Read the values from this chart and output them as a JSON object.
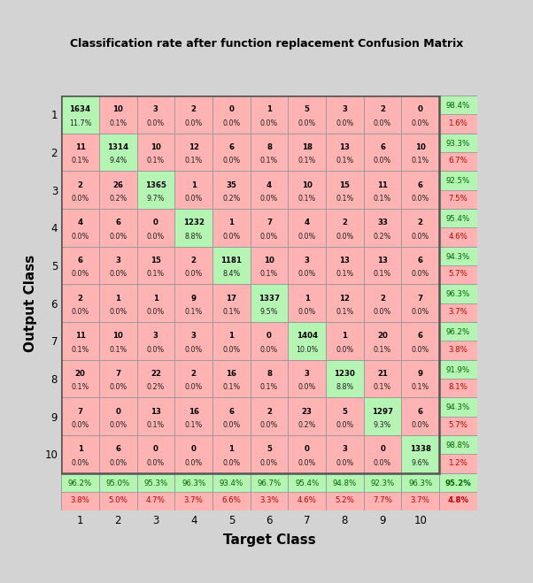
{
  "title": "Classification rate after function replacement Confusion Matrix",
  "counts": [
    [
      1634,
      10,
      3,
      2,
      0,
      1,
      5,
      3,
      2,
      0
    ],
    [
      11,
      1314,
      10,
      12,
      6,
      8,
      18,
      13,
      6,
      10
    ],
    [
      2,
      26,
      1365,
      1,
      35,
      4,
      10,
      15,
      11,
      6
    ],
    [
      4,
      6,
      0,
      1232,
      1,
      7,
      4,
      2,
      33,
      2
    ],
    [
      6,
      3,
      15,
      2,
      1181,
      10,
      3,
      13,
      13,
      6
    ],
    [
      2,
      1,
      1,
      9,
      17,
      1337,
      1,
      12,
      2,
      7
    ],
    [
      11,
      10,
      3,
      3,
      1,
      0,
      1404,
      1,
      20,
      6
    ],
    [
      20,
      7,
      22,
      2,
      16,
      8,
      3,
      1230,
      21,
      9
    ],
    [
      7,
      0,
      13,
      16,
      6,
      2,
      23,
      5,
      1297,
      6
    ],
    [
      1,
      6,
      0,
      0,
      1,
      5,
      0,
      3,
      0,
      1338
    ]
  ],
  "pct": [
    [
      11.7,
      0.1,
      0.0,
      0.0,
      0.0,
      0.0,
      0.0,
      0.0,
      0.0,
      0.0
    ],
    [
      0.1,
      9.4,
      0.1,
      0.1,
      0.0,
      0.1,
      0.1,
      0.1,
      0.0,
      0.1
    ],
    [
      0.0,
      0.2,
      9.7,
      0.0,
      0.2,
      0.0,
      0.1,
      0.1,
      0.1,
      0.0
    ],
    [
      0.0,
      0.0,
      0.0,
      8.8,
      0.0,
      0.0,
      0.0,
      0.0,
      0.2,
      0.0
    ],
    [
      0.0,
      0.0,
      0.1,
      0.0,
      8.4,
      0.1,
      0.0,
      0.1,
      0.1,
      0.0
    ],
    [
      0.0,
      0.0,
      0.0,
      0.1,
      0.1,
      9.5,
      0.0,
      0.1,
      0.0,
      0.0
    ],
    [
      0.1,
      0.1,
      0.0,
      0.0,
      0.0,
      0.0,
      10.0,
      0.0,
      0.1,
      0.0
    ],
    [
      0.1,
      0.0,
      0.2,
      0.0,
      0.1,
      0.1,
      0.0,
      8.8,
      0.1,
      0.1
    ],
    [
      0.0,
      0.0,
      0.1,
      0.1,
      0.0,
      0.0,
      0.2,
      0.0,
      9.3,
      0.0
    ],
    [
      0.0,
      0.0,
      0.0,
      0.0,
      0.0,
      0.0,
      0.0,
      0.0,
      0.0,
      9.6
    ]
  ],
  "row_correct": [
    98.4,
    93.3,
    92.5,
    95.4,
    94.3,
    96.3,
    96.2,
    91.9,
    94.3,
    98.8
  ],
  "row_error": [
    1.6,
    6.7,
    7.5,
    4.6,
    5.7,
    3.7,
    3.8,
    8.1,
    5.7,
    1.2
  ],
  "col_correct": [
    96.2,
    95.0,
    95.3,
    96.3,
    93.4,
    96.7,
    95.4,
    94.8,
    92.3,
    96.3
  ],
  "col_error": [
    3.8,
    5.0,
    4.7,
    3.7,
    6.6,
    3.3,
    4.6,
    5.2,
    7.7,
    3.7
  ],
  "overall_correct": 95.2,
  "overall_error": 4.8,
  "diag_color": "#b4f5b4",
  "offdiag_color": "#ffb3b3",
  "summary_correct_color": "#b4f5b4",
  "summary_error_color": "#ffb3b3",
  "overall_correct_color": "#b4f5b4",
  "overall_error_color": "#ffb3b3",
  "grid_color": "#999999",
  "bg_color": "#d3d3d3",
  "xlabel": "Target Class",
  "ylabel": "Output Class",
  "tick_labels": [
    "1",
    "2",
    "3",
    "4",
    "5",
    "6",
    "7",
    "8",
    "9",
    "10"
  ]
}
